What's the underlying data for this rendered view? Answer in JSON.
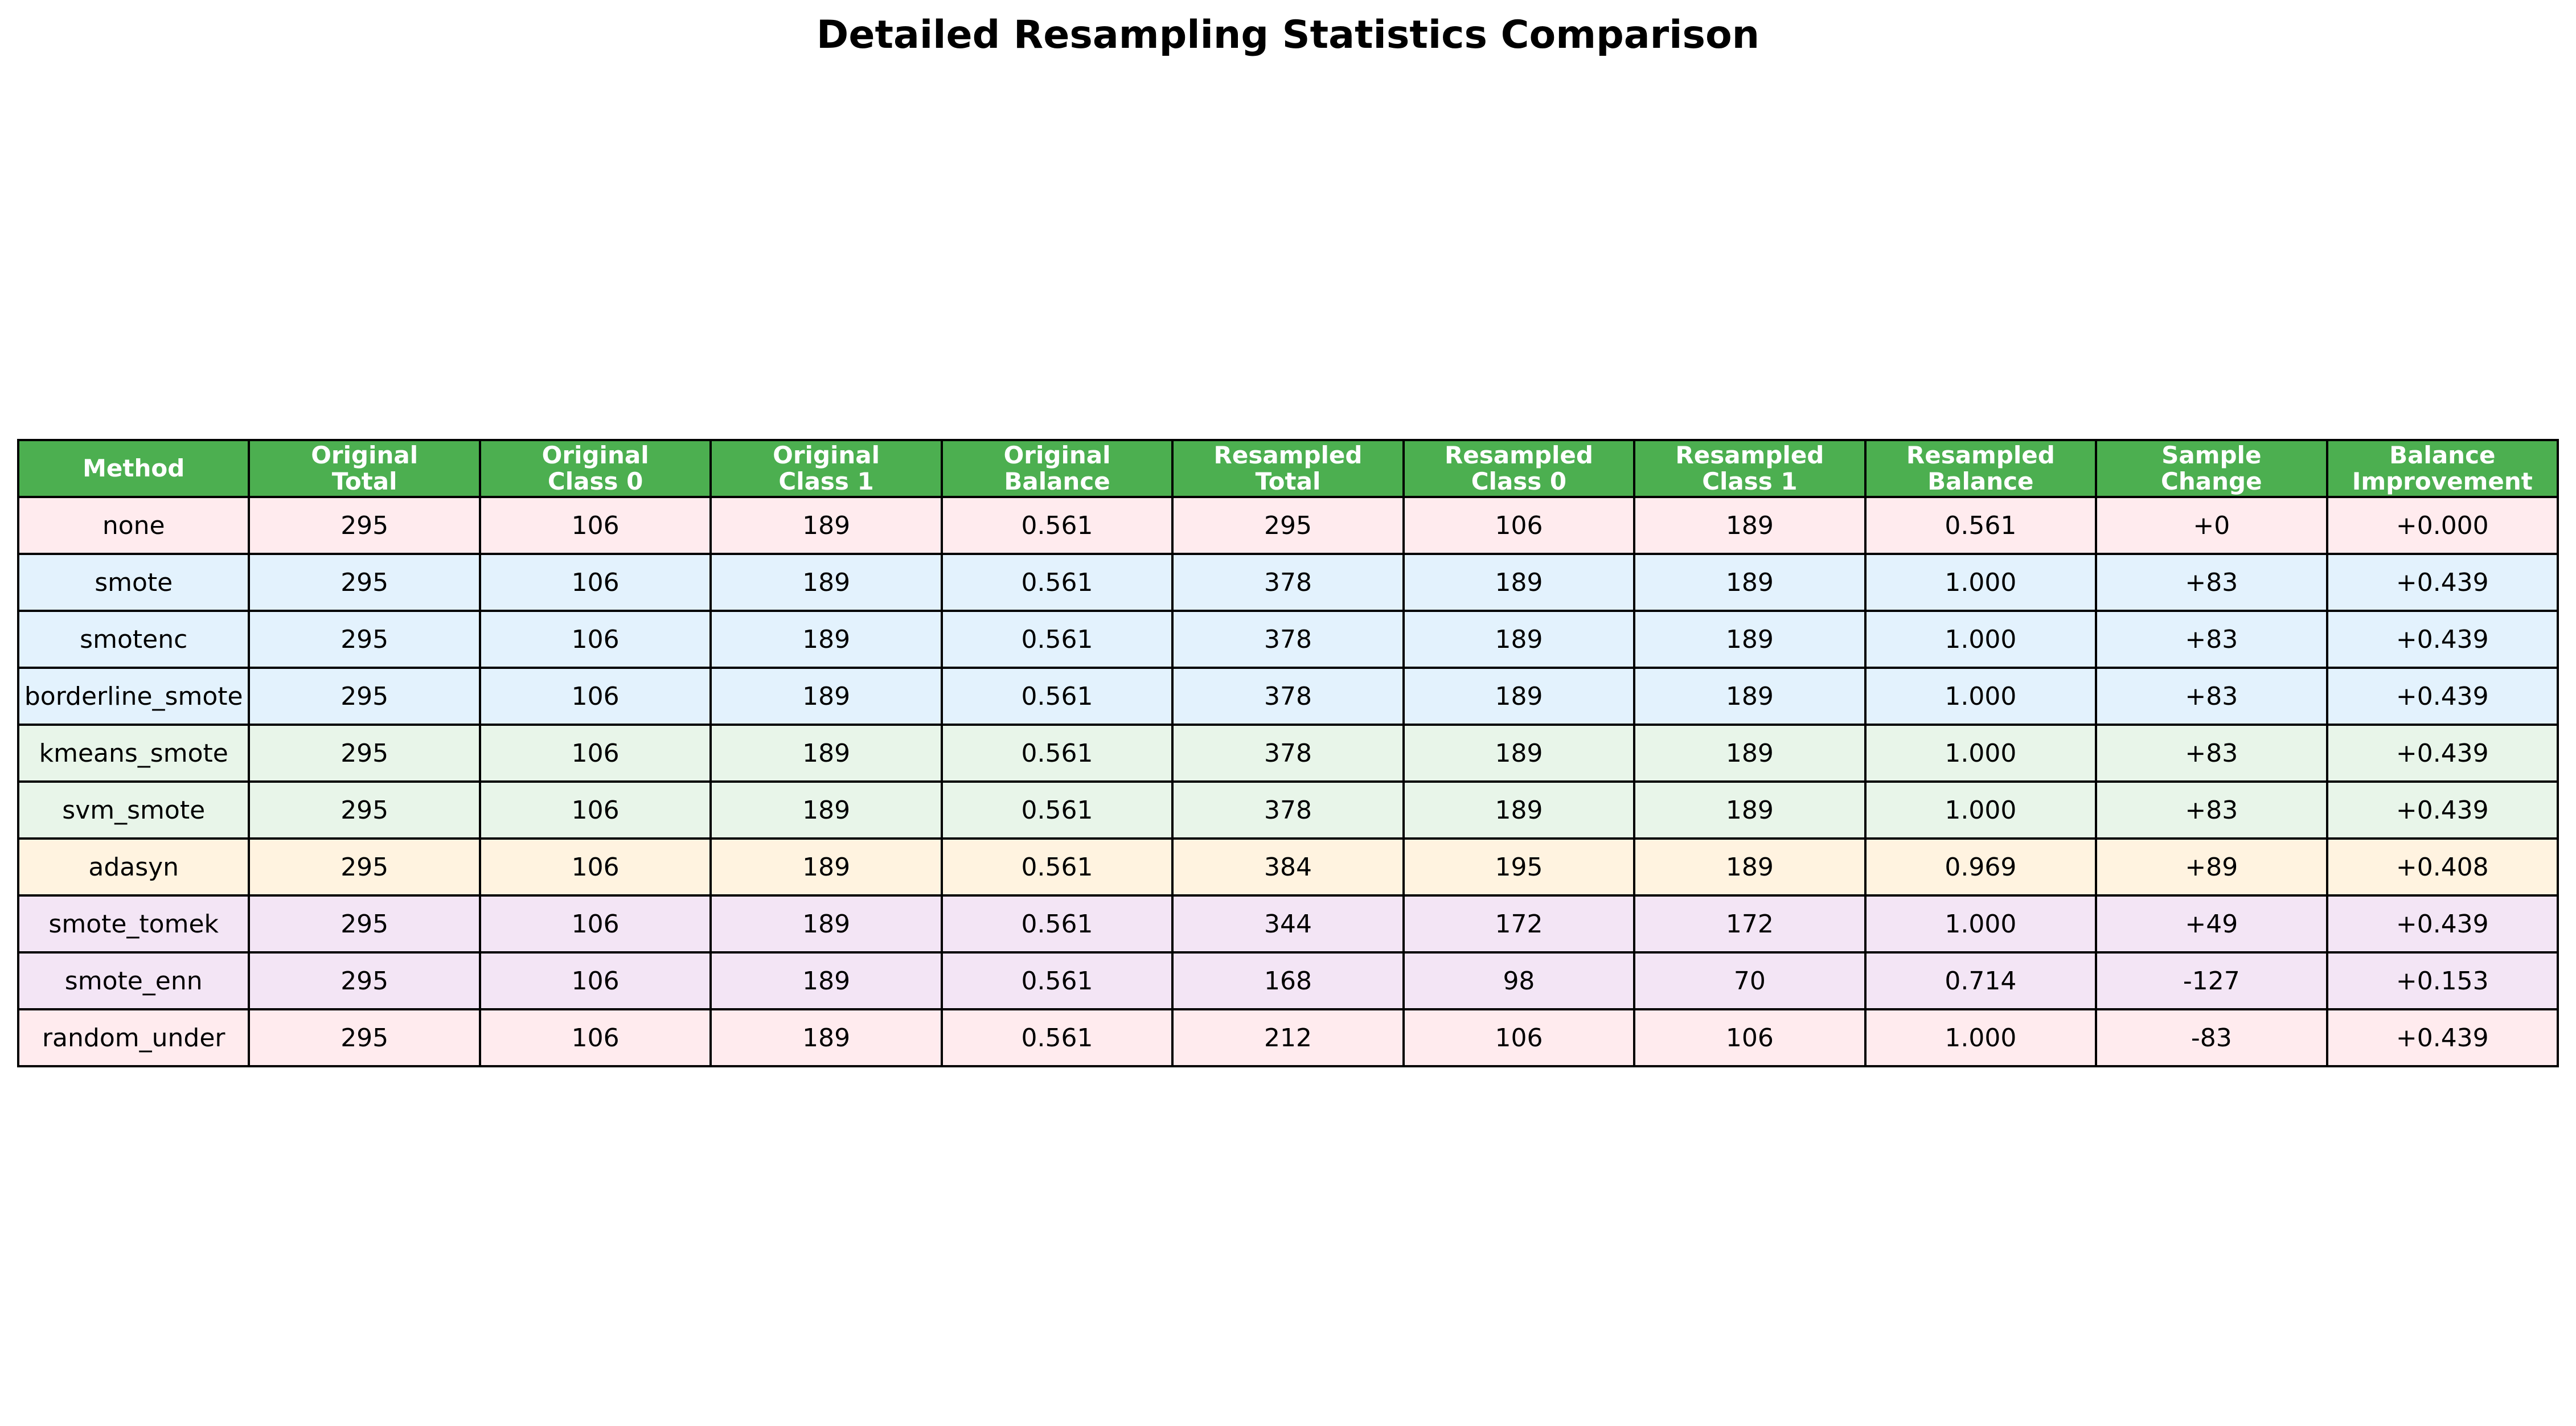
{
  "chart_data": {
    "type": "table",
    "title": "Detailed Resampling Statistics Comparison",
    "header_color": "#4caf50",
    "header_text_color": "#ffffff",
    "columns": [
      [
        "Method"
      ],
      [
        "Original",
        "Total"
      ],
      [
        "Original",
        "Class 0"
      ],
      [
        "Original",
        "Class 1"
      ],
      [
        "Original",
        "Balance"
      ],
      [
        "Resampled",
        "Total"
      ],
      [
        "Resampled",
        "Class 0"
      ],
      [
        "Resampled",
        "Class 1"
      ],
      [
        "Resampled",
        "Balance"
      ],
      [
        "Sample",
        "Change"
      ],
      [
        "Balance",
        "Improvement"
      ]
    ],
    "rows": [
      {
        "color": "#ffebee",
        "cells": [
          "none",
          "295",
          "106",
          "189",
          "0.561",
          "295",
          "106",
          "189",
          "0.561",
          "+0",
          "+0.000"
        ]
      },
      {
        "color": "#e3f2fd",
        "cells": [
          "smote",
          "295",
          "106",
          "189",
          "0.561",
          "378",
          "189",
          "189",
          "1.000",
          "+83",
          "+0.439"
        ]
      },
      {
        "color": "#e3f2fd",
        "cells": [
          "smotenc",
          "295",
          "106",
          "189",
          "0.561",
          "378",
          "189",
          "189",
          "1.000",
          "+83",
          "+0.439"
        ]
      },
      {
        "color": "#e3f2fd",
        "cells": [
          "borderline_smote",
          "295",
          "106",
          "189",
          "0.561",
          "378",
          "189",
          "189",
          "1.000",
          "+83",
          "+0.439"
        ]
      },
      {
        "color": "#e8f5e9",
        "cells": [
          "kmeans_smote",
          "295",
          "106",
          "189",
          "0.561",
          "378",
          "189",
          "189",
          "1.000",
          "+83",
          "+0.439"
        ]
      },
      {
        "color": "#e8f5e9",
        "cells": [
          "svm_smote",
          "295",
          "106",
          "189",
          "0.561",
          "378",
          "189",
          "189",
          "1.000",
          "+83",
          "+0.439"
        ]
      },
      {
        "color": "#fff3e0",
        "cells": [
          "adasyn",
          "295",
          "106",
          "189",
          "0.561",
          "384",
          "195",
          "189",
          "0.969",
          "+89",
          "+0.408"
        ]
      },
      {
        "color": "#f3e5f5",
        "cells": [
          "smote_tomek",
          "295",
          "106",
          "189",
          "0.561",
          "344",
          "172",
          "172",
          "1.000",
          "+49",
          "+0.439"
        ]
      },
      {
        "color": "#f3e5f5",
        "cells": [
          "smote_enn",
          "295",
          "106",
          "189",
          "0.561",
          "168",
          "98",
          "70",
          "0.714",
          "-127",
          "+0.153"
        ]
      },
      {
        "color": "#ffebee",
        "cells": [
          "random_under",
          "295",
          "106",
          "189",
          "0.561",
          "212",
          "106",
          "106",
          "1.000",
          "-83",
          "+0.439"
        ]
      }
    ]
  }
}
